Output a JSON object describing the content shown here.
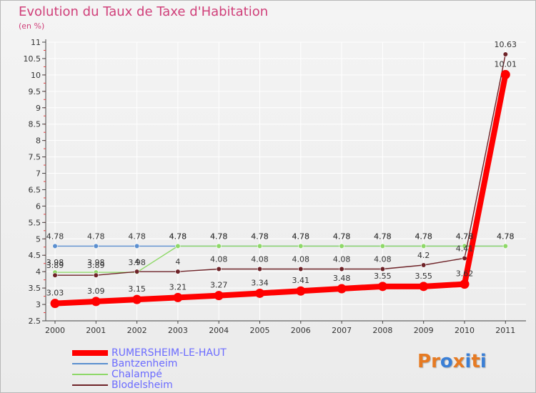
{
  "header": {
    "title": "Evolution du Taux de Taxe d'Habitation",
    "subtitle": "(en %)"
  },
  "logo": {
    "text": "Proxiti",
    "letters": [
      "P",
      "r",
      "o",
      "x",
      "i",
      "t",
      "i"
    ]
  },
  "colors": {
    "title": "#d0407a",
    "legend_text": "#6b6bff",
    "rumersheim": "#ff0000",
    "bantzenheim": "#5b8fcf",
    "chalampe": "#8ed868",
    "blodelsheim": "#6e2328",
    "axis_text": "#333333",
    "grid": "#ffffff",
    "logo": [
      "#e67a22",
      "#e67a22",
      "#3a7fd6",
      "#e67a22",
      "#3a7fd6",
      "#e67a22",
      "#3a7fd6"
    ]
  },
  "chart_data": {
    "type": "line",
    "title": "Evolution du Taux de Taxe d'Habitation",
    "ylabel": "(en %)",
    "xlabel": "",
    "ylim": [
      2.5,
      11
    ],
    "yticks": [
      "2.5",
      "3",
      "3.5",
      "4",
      "4.5",
      "5",
      "5.5",
      "6",
      "6.5",
      "7",
      "7.5",
      "8",
      "8.5",
      "9",
      "9.5",
      "10",
      "10.5",
      "11"
    ],
    "categories": [
      "2000",
      "2001",
      "2002",
      "2003",
      "2004",
      "2005",
      "2006",
      "2007",
      "2008",
      "2009",
      "2010",
      "2011"
    ],
    "series": [
      {
        "name": "RUMERSHEIM-LE-HAUT",
        "key": "rumersheim",
        "values": [
          3.03,
          3.09,
          3.15,
          3.21,
          3.27,
          3.34,
          3.41,
          3.48,
          3.55,
          3.55,
          3.62,
          10.01
        ],
        "labels": [
          "3.03",
          "3.09",
          "3.15",
          "3.21",
          "3.27",
          "3.34",
          "3.41",
          "3.48",
          "3.55",
          "3.55",
          "3.62",
          "10.01"
        ]
      },
      {
        "name": "Bantzenheim",
        "key": "bantzenheim",
        "values": [
          4.78,
          4.78,
          4.78,
          4.78,
          4.78,
          4.78,
          4.78,
          4.78,
          4.78,
          4.78,
          4.78,
          4.78
        ],
        "labels": [
          "4.78",
          "4.78",
          "4.78",
          "4.78",
          "4.78",
          "4.78",
          "4.78",
          "4.78",
          "4.78",
          "4.78",
          "4.78",
          "4.78"
        ]
      },
      {
        "name": "Chalampé",
        "key": "chalampe",
        "values": [
          3.98,
          3.98,
          3.98,
          4.78,
          4.78,
          4.78,
          4.78,
          4.78,
          4.78,
          4.78,
          4.78,
          4.78
        ],
        "labels": [
          "3.98",
          "3.98",
          "3.98",
          "4.78",
          "4.78",
          "4.78",
          "4.78",
          "4.78",
          "4.78",
          "4.78",
          "4.78",
          "4.78"
        ]
      },
      {
        "name": "Blodelsheim",
        "key": "blodelsheim",
        "values": [
          3.89,
          3.89,
          4.0,
          4.0,
          4.08,
          4.08,
          4.08,
          4.08,
          4.08,
          4.2,
          4.41,
          10.63
        ],
        "labels": [
          "3.89",
          "3.89",
          "4",
          "4",
          "4.08",
          "4.08",
          "4.08",
          "4.08",
          "4.08",
          "4.2",
          "4.41",
          "10.63"
        ]
      }
    ]
  }
}
